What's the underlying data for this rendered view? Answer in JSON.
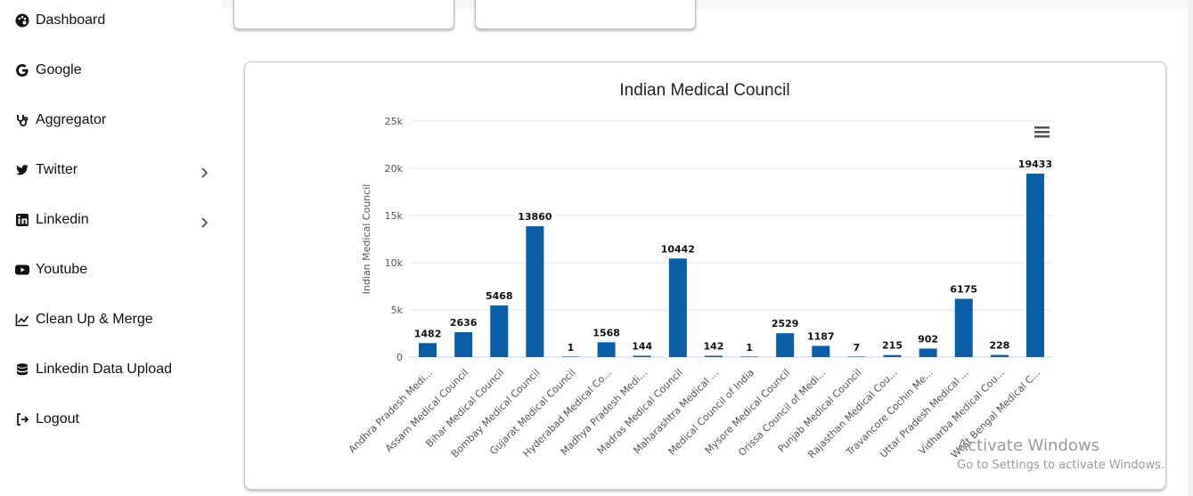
{
  "sidebar": {
    "items": [
      {
        "label": "Dashboard",
        "icon": "palette-icon",
        "has_chevron": false
      },
      {
        "label": "Google",
        "icon": "google-icon",
        "has_chevron": false
      },
      {
        "label": "Aggregator",
        "icon": "stethoscope-icon",
        "has_chevron": false
      },
      {
        "label": "Twitter",
        "icon": "twitter-icon",
        "has_chevron": true
      },
      {
        "label": "Linkedin",
        "icon": "linkedin-icon",
        "has_chevron": true
      },
      {
        "label": "Youtube",
        "icon": "youtube-icon",
        "has_chevron": false
      },
      {
        "label": "Clean Up & Merge",
        "icon": "line-chart-icon",
        "has_chevron": false
      },
      {
        "label": "Linkedin Data Upload",
        "icon": "database-icon",
        "has_chevron": false
      },
      {
        "label": "Logout",
        "icon": "logout-icon",
        "has_chevron": false
      }
    ]
  },
  "colors": {
    "bar": "#0a5ea8",
    "grid": "#e6e6e6",
    "axis_text": "#555555"
  },
  "watermark": {
    "line1": "Activate Windows",
    "line2": "Go to Settings to activate Windows."
  },
  "chart_data": {
    "type": "bar",
    "title": "Indian Medical Council",
    "xlabel": "",
    "ylabel": "Indian Medical Council",
    "ylim": [
      0,
      25000
    ],
    "yticks": [
      0,
      5000,
      10000,
      15000,
      20000,
      25000
    ],
    "ytick_labels": [
      "0",
      "5k",
      "10k",
      "15k",
      "20k",
      "25k"
    ],
    "categories": [
      "Andhra Pradesh Medi...",
      "Assam Medical Council",
      "Bihar Medical Council",
      "Bombay Medical Council",
      "Gujarat Medical Council",
      "Hyderabad Medical Co...",
      "Madhya Pradesh Medi...",
      "Madras Medical Council",
      "Maharashtra Medical ...",
      "Medical Council of India",
      "Mysore Medical Council",
      "Orissa Council of Medi...",
      "Punjab Medical Council",
      "Rajasthan Medical Cou...",
      "Travancore Cochin Me...",
      "Uttar Pradesh Medical ...",
      "Vidharba Medical Cou...",
      "West Bengal Medical C..."
    ],
    "values": [
      1482,
      2636,
      5468,
      13860,
      1,
      1568,
      144,
      10442,
      142,
      1,
      2529,
      1187,
      7,
      215,
      902,
      6175,
      228,
      19433
    ],
    "grid": true,
    "legend": "none"
  }
}
